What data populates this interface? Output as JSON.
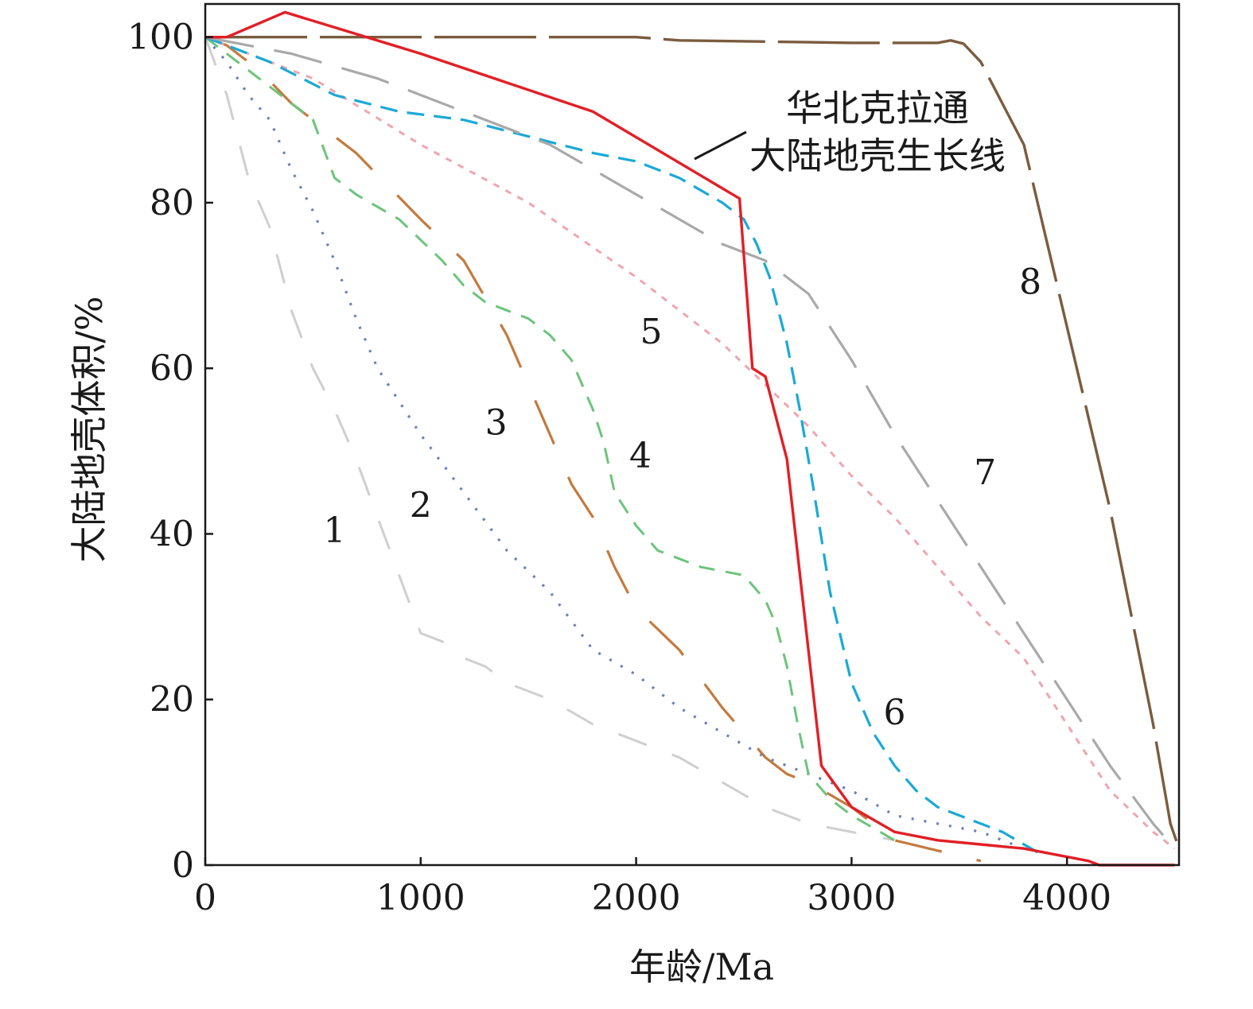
{
  "chart_data": {
    "type": "line",
    "xlabel": "年龄/Ma",
    "ylabel": "大陆地壳体积/%",
    "xlim": [
      0,
      4520
    ],
    "ylim": [
      0,
      104
    ],
    "x_ticks": [
      "0",
      "1000",
      "2000",
      "3000",
      "4000"
    ],
    "x_tick_values": [
      0,
      1000,
      2000,
      3000,
      4000
    ],
    "y_ticks": [
      "0",
      "20",
      "40",
      "60",
      "80",
      "100"
    ],
    "y_tick_values": [
      0,
      20,
      40,
      60,
      80,
      100
    ],
    "grid": false,
    "legend": "none",
    "annotation": {
      "line1": "华北克拉通",
      "line2": "大陆地壳生长线"
    },
    "series": [
      {
        "name": "1",
        "color": "#cfcfcf",
        "dash": "38,34",
        "width": 3,
        "label_at": [
          600,
          39
        ],
        "points": [
          [
            0,
            100
          ],
          [
            100,
            93
          ],
          [
            200,
            83
          ],
          [
            300,
            77
          ],
          [
            400,
            67
          ],
          [
            500,
            60
          ],
          [
            600,
            55
          ],
          [
            700,
            49
          ],
          [
            800,
            42
          ],
          [
            900,
            35
          ],
          [
            1000,
            28
          ],
          [
            1100,
            27
          ],
          [
            1200,
            25
          ],
          [
            1300,
            24
          ],
          [
            1400,
            22
          ],
          [
            1600,
            20
          ],
          [
            1800,
            17
          ],
          [
            2000,
            15
          ],
          [
            2200,
            13
          ],
          [
            2400,
            10
          ],
          [
            2600,
            7
          ],
          [
            2800,
            5
          ],
          [
            3000,
            4
          ],
          [
            3200,
            3
          ]
        ]
      },
      {
        "name": "2",
        "color": "#6b7fbf",
        "dash": "3,13",
        "width": 3.2,
        "label_at": [
          1000,
          42
        ],
        "points": [
          [
            0,
            100
          ],
          [
            100,
            97
          ],
          [
            200,
            93
          ],
          [
            300,
            90
          ],
          [
            400,
            84
          ],
          [
            500,
            79
          ],
          [
            600,
            73
          ],
          [
            700,
            66
          ],
          [
            800,
            60
          ],
          [
            900,
            56
          ],
          [
            1000,
            52
          ],
          [
            1200,
            45
          ],
          [
            1400,
            38
          ],
          [
            1600,
            33
          ],
          [
            1800,
            26
          ],
          [
            2000,
            23
          ],
          [
            2200,
            19
          ],
          [
            2400,
            16
          ],
          [
            2600,
            13
          ],
          [
            2800,
            11
          ],
          [
            3000,
            9
          ],
          [
            3200,
            6
          ],
          [
            3400,
            5
          ],
          [
            3600,
            4
          ],
          [
            3800,
            2
          ],
          [
            4000,
            1
          ]
        ]
      },
      {
        "name": "3",
        "color": "#c47a3e",
        "dash": "60,45",
        "width": 3.2,
        "label_at": [
          1350,
          52
        ],
        "points": [
          [
            0,
            100
          ],
          [
            100,
            99
          ],
          [
            250,
            96
          ],
          [
            400,
            92
          ],
          [
            600,
            88
          ],
          [
            700,
            86
          ],
          [
            1000,
            78
          ],
          [
            1200,
            73
          ],
          [
            1400,
            64
          ],
          [
            1500,
            58
          ],
          [
            1700,
            46
          ],
          [
            1800,
            42
          ],
          [
            1900,
            36
          ],
          [
            2000,
            31
          ],
          [
            2200,
            26
          ],
          [
            2400,
            19
          ],
          [
            2600,
            13
          ],
          [
            2700,
            11
          ],
          [
            2800,
            10
          ],
          [
            3000,
            7
          ],
          [
            3200,
            3
          ],
          [
            3600,
            0.5
          ]
        ]
      },
      {
        "name": "4",
        "color": "#6cc47a",
        "dash": "20,14",
        "width": 3,
        "label_at": [
          2020,
          48
        ],
        "points": [
          [
            0,
            100
          ],
          [
            150,
            97
          ],
          [
            250,
            95
          ],
          [
            400,
            92
          ],
          [
            500,
            90
          ],
          [
            600,
            83
          ],
          [
            700,
            81
          ],
          [
            900,
            78
          ],
          [
            1100,
            73
          ],
          [
            1200,
            70
          ],
          [
            1300,
            68
          ],
          [
            1400,
            67
          ],
          [
            1500,
            66
          ],
          [
            1600,
            64
          ],
          [
            1700,
            61
          ],
          [
            1800,
            55
          ],
          [
            1850,
            51
          ],
          [
            1900,
            45
          ],
          [
            2000,
            41
          ],
          [
            2100,
            38
          ],
          [
            2200,
            37
          ],
          [
            2300,
            36
          ],
          [
            2500,
            35
          ],
          [
            2600,
            32
          ],
          [
            2650,
            29
          ],
          [
            2700,
            24
          ],
          [
            2750,
            17
          ],
          [
            2800,
            11
          ],
          [
            2900,
            8
          ],
          [
            3000,
            6
          ],
          [
            3200,
            3
          ]
        ]
      },
      {
        "name": "5",
        "color": "#f0a5b0",
        "dash": "8,9",
        "width": 3,
        "label_at": [
          2070,
          63
        ],
        "points": [
          [
            0,
            100
          ],
          [
            500,
            95
          ],
          [
            1000,
            87
          ],
          [
            1500,
            80
          ],
          [
            2000,
            71
          ],
          [
            2200,
            67
          ],
          [
            2400,
            63
          ],
          [
            2600,
            58
          ],
          [
            2800,
            53
          ],
          [
            3000,
            47
          ],
          [
            3200,
            42
          ],
          [
            3400,
            36
          ],
          [
            3600,
            30
          ],
          [
            3800,
            25
          ],
          [
            4000,
            17
          ],
          [
            4200,
            9
          ],
          [
            4400,
            4
          ],
          [
            4500,
            2
          ]
        ]
      },
      {
        "name": "6",
        "color": "#1aa9d6",
        "dash": "22,12",
        "width": 3.2,
        "label_at": [
          3200,
          17
        ],
        "points": [
          [
            0,
            100
          ],
          [
            300,
            97
          ],
          [
            600,
            93
          ],
          [
            900,
            91
          ],
          [
            1200,
            90
          ],
          [
            1500,
            88
          ],
          [
            1800,
            86
          ],
          [
            2000,
            85
          ],
          [
            2200,
            83
          ],
          [
            2400,
            80
          ],
          [
            2500,
            78
          ],
          [
            2560,
            75
          ],
          [
            2620,
            71
          ],
          [
            2700,
            63
          ],
          [
            2760,
            55
          ],
          [
            2820,
            46
          ],
          [
            2900,
            33
          ],
          [
            3000,
            22
          ],
          [
            3100,
            16
          ],
          [
            3200,
            12
          ],
          [
            3300,
            9
          ],
          [
            3400,
            7
          ],
          [
            3500,
            6
          ],
          [
            3700,
            4
          ],
          [
            3900,
            1
          ]
        ]
      },
      {
        "name": "7",
        "color": "#a9a9a9",
        "dash": "62,26",
        "width": 3.2,
        "label_at": [
          3620,
          46
        ],
        "points": [
          [
            0,
            100
          ],
          [
            400,
            98
          ],
          [
            800,
            95
          ],
          [
            1200,
            91
          ],
          [
            1600,
            87
          ],
          [
            2000,
            81
          ],
          [
            2400,
            75
          ],
          [
            2600,
            73
          ],
          [
            2800,
            69
          ],
          [
            3000,
            61
          ],
          [
            3200,
            52
          ],
          [
            3400,
            44
          ],
          [
            3600,
            36
          ],
          [
            3800,
            28
          ],
          [
            4000,
            20
          ],
          [
            4200,
            12
          ],
          [
            4400,
            5
          ],
          [
            4500,
            2
          ]
        ]
      },
      {
        "name": "8",
        "color": "#7a5c3e",
        "dash": "128,16",
        "width": 3.4,
        "label_at": [
          3830,
          69
        ],
        "points": [
          [
            0,
            100
          ],
          [
            1000,
            100
          ],
          [
            2000,
            100
          ],
          [
            2200,
            99.6
          ],
          [
            2500,
            99.5
          ],
          [
            3000,
            99.3
          ],
          [
            3400,
            99.3
          ],
          [
            3460,
            99.6
          ],
          [
            3520,
            99.2
          ],
          [
            3600,
            97
          ],
          [
            3700,
            92
          ],
          [
            3800,
            87
          ],
          [
            3900,
            76
          ],
          [
            4000,
            65
          ],
          [
            4100,
            54
          ],
          [
            4200,
            43
          ],
          [
            4300,
            30
          ],
          [
            4400,
            17
          ],
          [
            4480,
            5
          ],
          [
            4520,
            2
          ]
        ]
      },
      {
        "name": "华北克拉通",
        "color": "#e21f26",
        "dash": "",
        "width": 3.4,
        "points": [
          [
            0,
            100
          ],
          [
            100,
            100
          ],
          [
            370,
            103
          ],
          [
            1000,
            98
          ],
          [
            1800,
            91
          ],
          [
            2480,
            80.5
          ],
          [
            2540,
            60
          ],
          [
            2600,
            59
          ],
          [
            2700,
            49
          ],
          [
            2860,
            12
          ],
          [
            3000,
            7
          ],
          [
            3200,
            4
          ],
          [
            3400,
            3
          ],
          [
            3600,
            2.5
          ],
          [
            3800,
            2
          ],
          [
            4100,
            0.5
          ],
          [
            4150,
            0
          ],
          [
            4500,
            0
          ]
        ]
      }
    ]
  }
}
